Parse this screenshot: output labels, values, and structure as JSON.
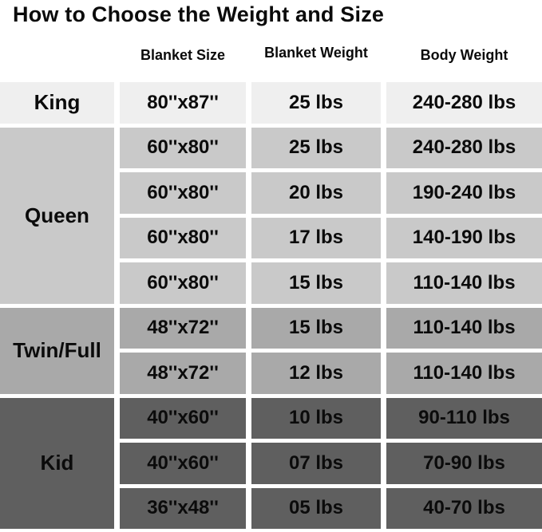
{
  "title": "How to Choose the Weight and Size",
  "table": {
    "headers": [
      "Blanket Size",
      "Blanket Weight",
      "Body Weight"
    ],
    "text_color": "#0b0b0b",
    "groups": [
      {
        "label": "King",
        "color": "#efefef",
        "rows": [
          {
            "blanket_size": "80''x87''",
            "blanket_weight": "25 lbs",
            "body_weight": "240-280 lbs"
          }
        ]
      },
      {
        "label": "Queen",
        "color": "#c9c9c9",
        "rows": [
          {
            "blanket_size": "60''x80''",
            "blanket_weight": "25 lbs",
            "body_weight": "240-280 lbs"
          },
          {
            "blanket_size": "60''x80''",
            "blanket_weight": "20 lbs",
            "body_weight": "190-240 lbs"
          },
          {
            "blanket_size": "60''x80''",
            "blanket_weight": "17 lbs",
            "body_weight": "140-190 lbs"
          },
          {
            "blanket_size": "60''x80''",
            "blanket_weight": "15 lbs",
            "body_weight": "110-140 lbs"
          }
        ]
      },
      {
        "label": "Twin/Full",
        "color": "#a9a9a9",
        "rows": [
          {
            "blanket_size": "48''x72''",
            "blanket_weight": "15 lbs",
            "body_weight": "110-140 lbs"
          },
          {
            "blanket_size": "48''x72''",
            "blanket_weight": "12 lbs",
            "body_weight": "110-140 lbs"
          }
        ]
      },
      {
        "label": "Kid",
        "color": "#5f5f5f",
        "rows": [
          {
            "blanket_size": "40''x60''",
            "blanket_weight": "10 lbs",
            "body_weight": "90-110 lbs"
          },
          {
            "blanket_size": "40''x60''",
            "blanket_weight": "07 lbs",
            "body_weight": "70-90 lbs"
          },
          {
            "blanket_size": "36''x48''",
            "blanket_weight": "05 lbs",
            "body_weight": "40-70 lbs"
          }
        ]
      }
    ]
  }
}
